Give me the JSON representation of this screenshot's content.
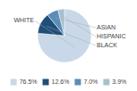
{
  "chart_data": {
    "type": "pie",
    "categories": [
      "WHITE",
      "BLACK",
      "ASIAN",
      "HISPANIC"
    ],
    "values": [
      76.5,
      12.6,
      7.0,
      3.9
    ],
    "value_labels": [
      "76.5%",
      "12.6%",
      "7.0%",
      "3.9%"
    ],
    "colors": [
      "#c8d8e8",
      "#1f4e79",
      "#5b8db8",
      "#a8bfcf"
    ],
    "legend": "bottom"
  }
}
